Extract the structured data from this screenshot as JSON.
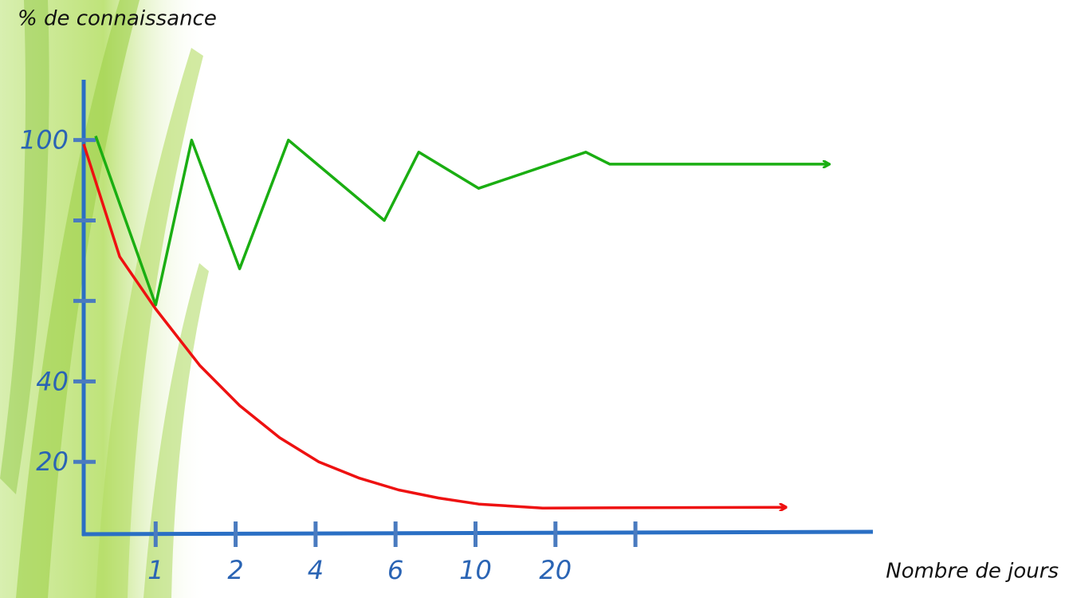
{
  "chart_data": {
    "type": "line",
    "y_label": "% de connaissance",
    "x_label": "Nombre de jours",
    "categories": [
      "1",
      "2",
      "4",
      "6",
      "10",
      "20",
      null
    ],
    "xlim": [
      -0.9,
      8.97
    ],
    "ylim": [
      2,
      115
    ],
    "yticks": [
      20,
      40,
      100
    ],
    "yticks_unlabeled": [
      60,
      80
    ],
    "series": [
      {
        "color": "#1aae12",
        "x": [
          -0.75,
          0,
          0.45,
          1.05,
          1.66,
          2.86,
          3.29,
          4.04,
          5.38,
          5.68,
          8.42
        ],
        "values": [
          101,
          59,
          100,
          68,
          100,
          80,
          97,
          88,
          97,
          94,
          94
        ]
      },
      {
        "color": "#ee1111",
        "x": [
          -0.9,
          -0.45,
          0,
          0.55,
          1.05,
          1.55,
          2.04,
          2.54,
          3.04,
          3.54,
          4.04,
          4.84,
          7.88
        ],
        "values": [
          99,
          71,
          58,
          44,
          34,
          26,
          20,
          16,
          13,
          11,
          9.5,
          8.5,
          8.7
        ]
      }
    ]
  }
}
